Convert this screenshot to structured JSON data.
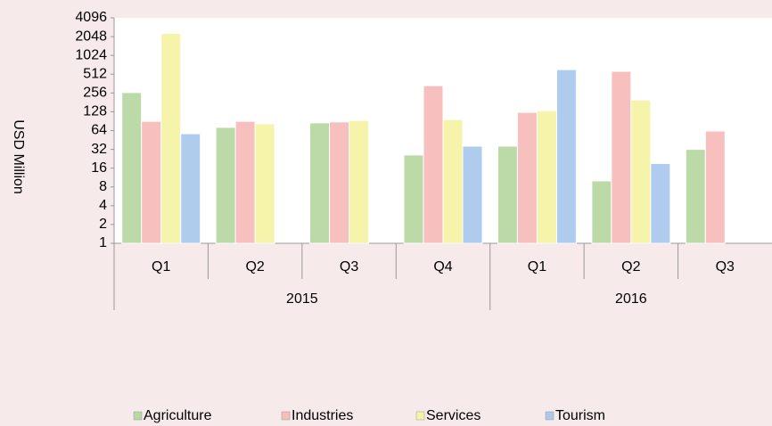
{
  "chart_data": {
    "type": "bar",
    "y_label": "USD Million",
    "groups": [
      {
        "name": "2015",
        "categories": [
          "Q1",
          "Q2",
          "Q3",
          "Q4"
        ]
      },
      {
        "name": "2016",
        "categories": [
          "Q1",
          "Q2",
          "Q3"
        ]
      }
    ],
    "series": [
      {
        "name": "Agriculture",
        "color": "#b9d9a3",
        "values": [
          260,
          72,
          85,
          26,
          36,
          10,
          32
        ]
      },
      {
        "name": "Industries",
        "color": "#f8bcbc",
        "values": [
          90,
          90,
          88,
          335,
          125,
          568,
          63
        ]
      },
      {
        "name": "Services",
        "color": "#f6f3a6",
        "values": [
          2300,
          82,
          93,
          96,
          133,
          198,
          null
        ]
      },
      {
        "name": "Tourism",
        "color": "#abc9ee",
        "values": [
          57,
          null,
          null,
          36,
          605,
          19,
          null
        ]
      }
    ],
    "log_scale": true,
    "ylim": [
      1,
      4096
    ],
    "yticks": [
      1,
      2,
      4,
      8,
      16,
      32,
      64,
      128,
      256,
      512,
      1024,
      2048,
      4096
    ],
    "legend": "bottom"
  }
}
